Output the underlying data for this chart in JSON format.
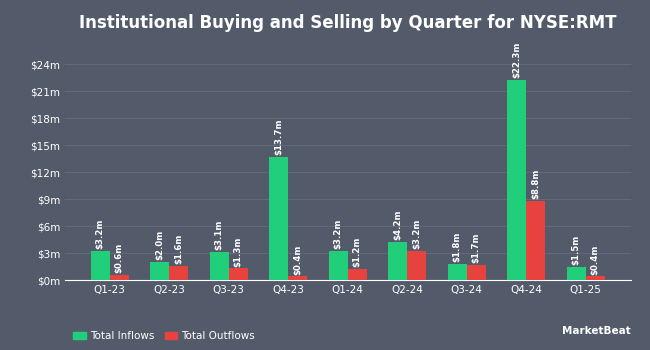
{
  "title": "Institutional Buying and Selling by Quarter for NYSE:RMT",
  "quarters": [
    "Q1-23",
    "Q2-23",
    "Q3-23",
    "Q4-23",
    "Q1-24",
    "Q2-24",
    "Q3-24",
    "Q4-24",
    "Q1-25"
  ],
  "inflows": [
    3.2,
    2.0,
    3.1,
    13.7,
    3.2,
    4.2,
    1.8,
    22.3,
    1.5
  ],
  "outflows": [
    0.6,
    1.6,
    1.3,
    0.4,
    1.2,
    3.2,
    1.7,
    8.8,
    0.4
  ],
  "inflow_labels": [
    "$3.2m",
    "$2.0m",
    "$3.1m",
    "$13.7m",
    "$3.2m",
    "$4.2m",
    "$1.8m",
    "$22.3m",
    "$1.5m"
  ],
  "outflow_labels": [
    "$0.6m",
    "$1.6m",
    "$1.3m",
    "$0.4m",
    "$1.2m",
    "$3.2m",
    "$1.7m",
    "$8.8m",
    "$0.4m"
  ],
  "inflow_color": "#21ce7a",
  "outflow_color": "#e8423f",
  "background_color": "#535b6b",
  "grid_color": "#626b7c",
  "text_color": "#ffffff",
  "yticks": [
    0,
    3,
    6,
    9,
    12,
    15,
    18,
    21,
    24
  ],
  "ytick_labels": [
    "$0m",
    "$3m",
    "$6m",
    "$9m",
    "$12m",
    "$15m",
    "$18m",
    "$21m",
    "$24m"
  ],
  "ylim": [
    0,
    26.5
  ],
  "bar_width": 0.32,
  "legend_inflow": "Total Inflows",
  "legend_outflow": "Total Outflows",
  "title_fontsize": 12,
  "label_fontsize": 6.2,
  "tick_fontsize": 7.5,
  "legend_fontsize": 7.5
}
